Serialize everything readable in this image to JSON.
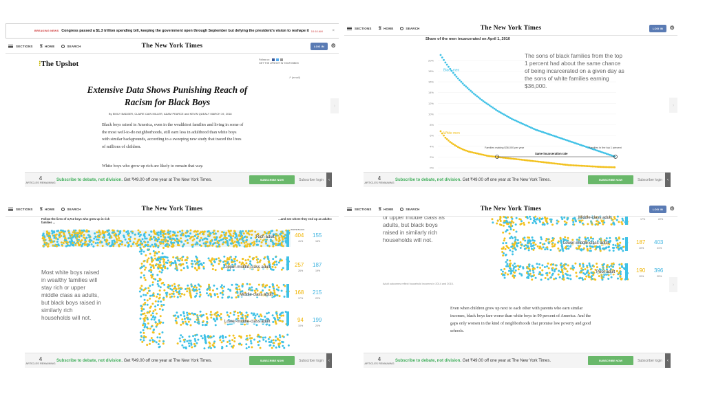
{
  "nav": {
    "sections": "SECTIONS",
    "home": "HOME",
    "search": "SEARCH",
    "logo": "The New York Times",
    "login": "LOG IN"
  },
  "breaking": {
    "label": "BREAKING NEWS",
    "text": "Congress passed a $1.3 trillion spending bill, keeping the government open through September but defying the president’s vision to reshape it",
    "time": "10:10 AM"
  },
  "article": {
    "section": "The Upshot",
    "follow_label": "Follow us:",
    "follow_sub": "GET THE UPSHOT IN YOUR INBOX",
    "share": "(email)",
    "headline": "Extensive Data Shows Punishing Reach of Racism for Black Boys",
    "byline": "By EMILY BADGER, CLAIRE CAIN MILLER, ADAM PEARCE and KEVIN QUEALY   MARCH 19, 2018",
    "p1": "Black boys raised in America, even in the wealthiest families and living in some of the most well-to-do neighborhoods, still earn less in adulthood than white boys with similar backgrounds, according to a sweeping new study that traced the lives of millions of children.",
    "p2": "White boys who grow up rich are likely to remain that way."
  },
  "paywall": {
    "count": "4",
    "count_label": "ARTICLES REMAINING",
    "slogan": "Subscribe to debate, not division.",
    "offer": "Get ₹49.00 off one year at The New York Times.",
    "button": "SUBSCRIBE NOW",
    "login": "Subscriber login",
    "arrow": "‹"
  },
  "chart": {
    "title": "Share of the men incarcerated on April 1, 2010",
    "annotation": "The sons of black families from the top 1 percent had about the same chance of being incarcerated on a given day as the sons of white families earning $36,000.",
    "label_left": "Families making $36,000 per year",
    "label_right": "Families in the top 1 percent",
    "same_rate": "Same incarceration rate",
    "black_men": "Black men",
    "white_men": "White men",
    "yticks": [
      "20%",
      "18%",
      "16%",
      "14%",
      "12%",
      "10%",
      "8%",
      "6%",
      "4%",
      "2%",
      "0%"
    ]
  },
  "chart_data": {
    "type": "scatter",
    "title": "Share of the men incarcerated on April 1, 2010",
    "ylim": [
      0,
      21
    ],
    "series": [
      {
        "name": "Black men",
        "color": "#3fc1e6",
        "values": [
          21,
          19.6,
          18.4,
          17.3,
          16.3,
          15.4,
          14.6,
          13.8,
          13.1,
          12.4,
          11.8,
          11.2,
          10.6,
          10.1,
          9.6,
          9.1,
          8.7,
          8.3,
          7.9,
          7.5,
          7.1,
          6.8,
          6.5,
          6.2,
          5.9,
          5.6,
          5.3,
          5.0,
          4.7,
          4.4,
          4.1,
          3.8,
          3.5,
          3.2,
          2.9,
          2.6,
          2.3,
          2.0
        ]
      },
      {
        "name": "White men",
        "color": "#f2c11e",
        "values": [
          6.8,
          5.6,
          4.8,
          4.2,
          3.7,
          3.3,
          3.0,
          2.8,
          2.6,
          2.4,
          2.2,
          2.1,
          2.0,
          1.9,
          1.8,
          1.7,
          1.6,
          1.5,
          1.4,
          1.3,
          1.2,
          1.1,
          1.0,
          0.9,
          0.8,
          0.7,
          0.6,
          0.5,
          0.45,
          0.4,
          0.35,
          0.3,
          0.25,
          0.2,
          0.15,
          0.12,
          0.1,
          0.08
        ]
      }
    ]
  },
  "flow": {
    "intro": "Follow the lives of 4,712 boys who grew up in rich families ...",
    "outro": "...and see where they end up as adults:",
    "colheads": "WHITE   BLACK",
    "left_text": "Most white boys raised in wealthy families will stay rich or upper middle class as adults, but black boys raised in similarly rich households will not.",
    "left_text_partial": "or upper middle class as adults, but black boys raised in similarly rich households will not.",
    "buckets": [
      {
        "name": "Rich adult",
        "white": "404",
        "black": "155",
        "wpct": "41%",
        "bpct": "16%"
      },
      {
        "name": "Upper-middle-class adult",
        "white": "257",
        "black": "187",
        "wpct": "26%",
        "bpct": "19%"
      },
      {
        "name": "Middle-class adult",
        "white": "168",
        "black": "215",
        "wpct": "17%",
        "bpct": "22%"
      },
      {
        "name": "Lower-middle-class adult",
        "white": "94",
        "black": "199",
        "wpct": "10%",
        "bpct": "20%"
      }
    ],
    "p4_buckets": [
      {
        "name": "Middle-class adult",
        "wpct": "17%",
        "bpct": "22%"
      },
      {
        "name": "Lower-middle-class adult",
        "white": "187",
        "black": "403",
        "wpct": "10%",
        "bpct": "21%"
      },
      {
        "name": "Poor adult",
        "white": "190",
        "black": "396",
        "wpct": "10%",
        "bpct": "20%"
      }
    ],
    "footnote": "Adult outcomes reflect household incomes in 2014 and 2015.",
    "caption": "Even when children grow up next to each other with parents who earn similar incomes, black boys fare worse than white boys in 99 percent of America. And the gaps only worsen in the kind of neighborhoods that promise low poverty and good schools."
  }
}
